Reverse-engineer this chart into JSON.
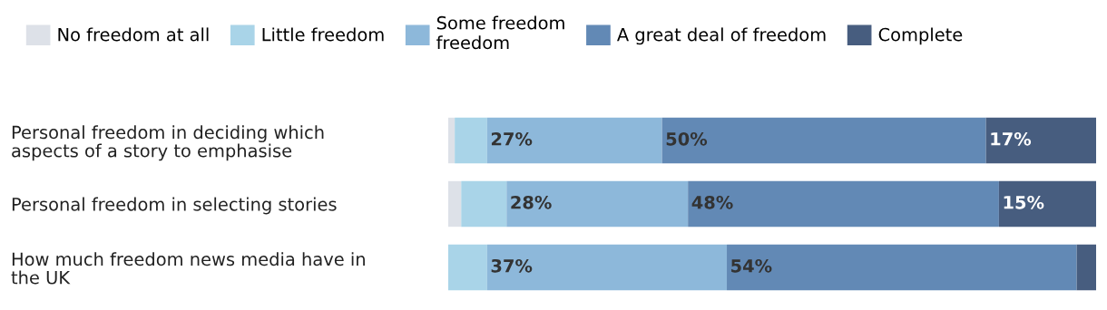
{
  "chart_data": {
    "type": "bar",
    "orientation": "horizontal",
    "stacked": true,
    "legend": "top left",
    "categories": [
      "Personal freedom in deciding which\naspects of a story to emphasise",
      "Personal freedom in selecting stories",
      "How much freedom news media have in\nthe UK"
    ],
    "series": [
      {
        "name": "No freedom at all",
        "color": "#dde1e8",
        "values": [
          1,
          2,
          0
        ],
        "value_labels": [
          null,
          null,
          null
        ]
      },
      {
        "name": "Little freedom",
        "color": "#a9d4e8",
        "values": [
          5,
          7,
          6
        ],
        "value_labels": [
          null,
          null,
          null
        ]
      },
      {
        "name": "Some freedom\nfreedom",
        "color": "#8db8da",
        "values": [
          27,
          28,
          37
        ],
        "value_labels": [
          "27%",
          "28%",
          "37%"
        ]
      },
      {
        "name": "A great deal of freedom",
        "color": "#6289b5",
        "values": [
          50,
          48,
          54
        ],
        "value_labels": [
          "50%",
          "48%",
          "54%"
        ]
      },
      {
        "name": "Complete",
        "color": "#475d7f",
        "values": [
          17,
          15,
          3
        ],
        "value_labels": [
          "17%",
          "15%",
          null
        ]
      }
    ]
  }
}
